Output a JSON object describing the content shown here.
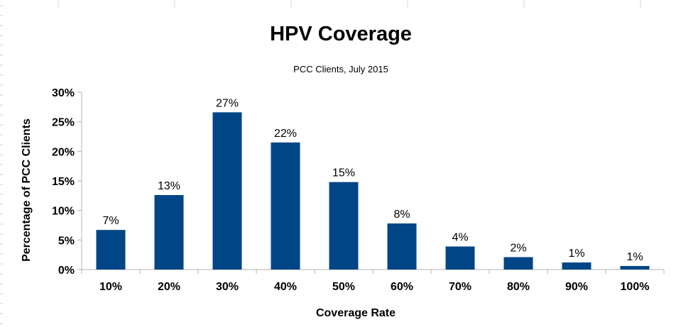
{
  "chart_data": {
    "type": "bar",
    "title": "HPV Coverage",
    "subtitle": "PCC Clients, July 2015",
    "xlabel": "Coverage Rate",
    "ylabel": "Percentage of PCC Clients",
    "categories": [
      "10%",
      "20%",
      "30%",
      "40%",
      "50%",
      "60%",
      "70%",
      "80%",
      "90%",
      "100%"
    ],
    "values": [
      6.7,
      12.6,
      26.6,
      21.5,
      14.8,
      7.8,
      3.9,
      2.1,
      1.2,
      0.6
    ],
    "data_labels": [
      "7%",
      "13%",
      "27%",
      "22%",
      "15%",
      "8%",
      "4%",
      "2%",
      "1%",
      "1%"
    ],
    "ylim": [
      0,
      30
    ],
    "yticks": [
      "0%",
      "5%",
      "10%",
      "15%",
      "20%",
      "25%",
      "30%"
    ],
    "ytick_values": [
      0,
      5,
      10,
      15,
      20,
      25,
      30
    ],
    "bar_color": "#004586",
    "grid": false,
    "legend": "none"
  }
}
